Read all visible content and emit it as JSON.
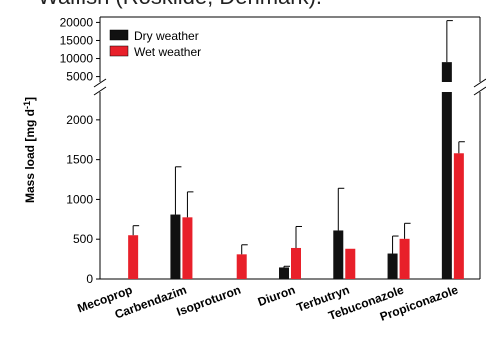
{
  "header": {
    "caption": "Walfish (Roskilde, Denmark)."
  },
  "chart_data": {
    "type": "bar",
    "categories": [
      "Mecoprop",
      "Carbendazim",
      "Isoproturon",
      "Diuron",
      "Terbutryn",
      "Tebuconazole",
      "Propiconazole"
    ],
    "series": [
      {
        "name": "Dry weather",
        "color": "#111111",
        "values": [
          0,
          810,
          0,
          145,
          610,
          320,
          9000
        ],
        "errors": [
          0,
          600,
          0,
          15,
          530,
          220,
          11500
        ]
      },
      {
        "name": "Wet weather",
        "color": "#e8202a",
        "values": [
          550,
          775,
          310,
          390,
          380,
          505,
          1580
        ],
        "errors": [
          120,
          320,
          120,
          270,
          0,
          195,
          145
        ]
      }
    ],
    "ylabel_main": "Mass load [mg d",
    "ylabel_sup": "-1",
    "ylabel_end": "]",
    "yticks_lower": [
      0,
      500,
      1000,
      1500,
      2000
    ],
    "yticks_upper": [
      5000,
      10000,
      15000,
      20000
    ],
    "ylim_lower": [
      0,
      2350
    ],
    "ylim_upper": [
      3500,
      21500
    ],
    "axis_break": true,
    "legend_position": "top-left"
  }
}
